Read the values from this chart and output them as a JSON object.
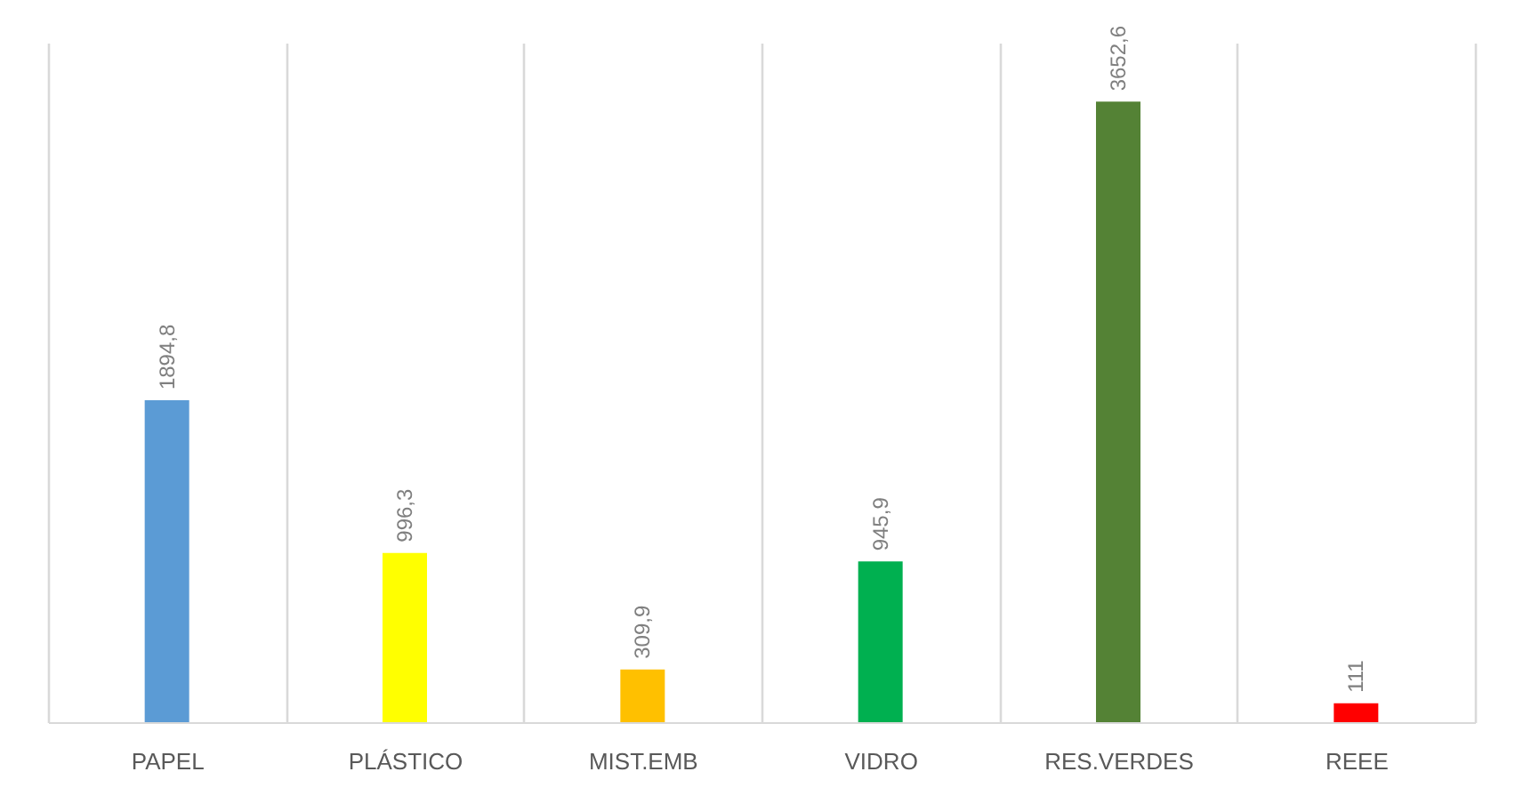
{
  "chart_data": {
    "type": "bar",
    "categories": [
      "PAPEL",
      "PLÁSTICO",
      "MIST.EMB",
      "VIDRO",
      "RES.VERDES",
      "REEE"
    ],
    "values": [
      1894.8,
      996.3,
      309.9,
      945.9,
      3652.6,
      111
    ],
    "colors": [
      "#5b9bd5",
      "#ffff00",
      "#ffc000",
      "#00b050",
      "#548235",
      "#ff0000"
    ],
    "value_labels": [
      "1894,8",
      "996,3",
      "309,9",
      "945,9",
      "3652,6",
      "111"
    ],
    "ylim": [
      0,
      4000
    ],
    "tick_labels": "x",
    "grid": "x"
  }
}
